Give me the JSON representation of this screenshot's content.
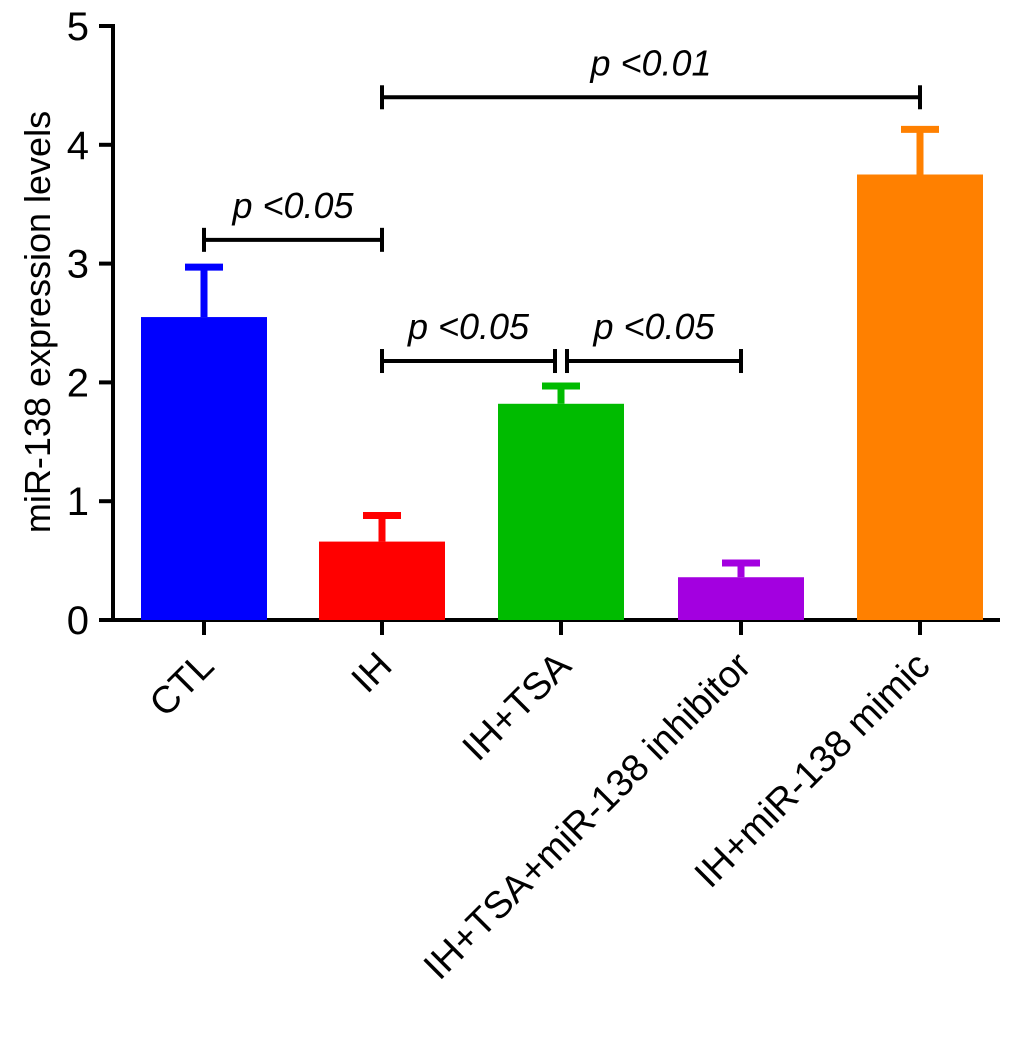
{
  "chart_data": {
    "type": "bar",
    "title": "",
    "xlabel": "",
    "ylabel": "miR-138 expression levels",
    "ylim": [
      0,
      5
    ],
    "yticks": [
      0,
      1,
      2,
      3,
      4,
      5
    ],
    "grid": false,
    "categories": [
      "CTL",
      "IH",
      "IH+TSA",
      "IH+TSA+miR-138 inhibitor",
      "IH+miR-138 mimic"
    ],
    "values": [
      2.55,
      0.66,
      1.82,
      0.36,
      3.75
    ],
    "errors": [
      0.42,
      0.22,
      0.15,
      0.12,
      0.38
    ],
    "colors": [
      "#0000ff",
      "#ff0000",
      "#00bb00",
      "#a300e0",
      "#ff8000"
    ],
    "significance": [
      {
        "from": 0,
        "to": 1,
        "label": "p <0.05",
        "level": 3.2
      },
      {
        "from": 1,
        "to": 2,
        "label": "p <0.05",
        "level": 2.18
      },
      {
        "from": 2,
        "to": 3,
        "label": "p <0.05",
        "level": 2.18
      },
      {
        "from": 1,
        "to": 4,
        "label": "p <0.01",
        "level": 4.4
      }
    ]
  }
}
